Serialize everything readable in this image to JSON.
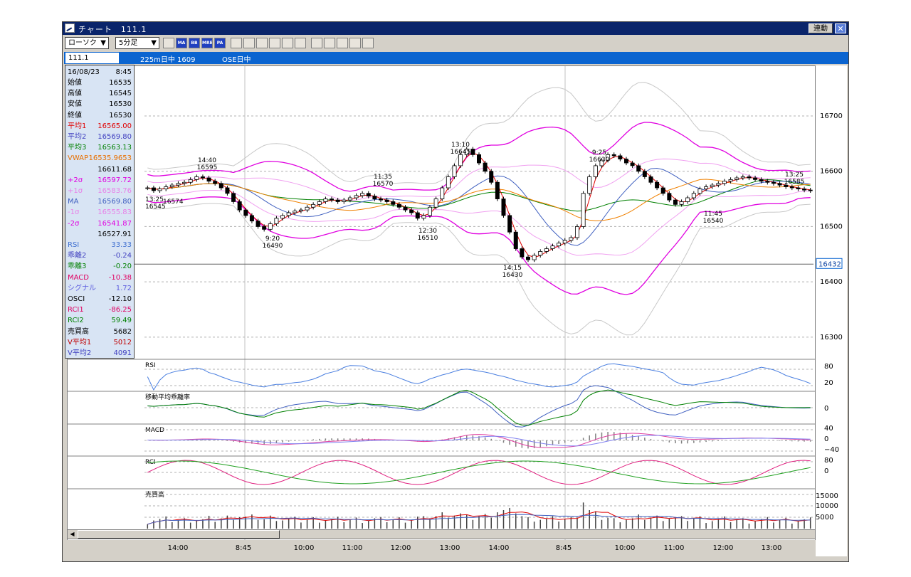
{
  "window": {
    "title": "チャート　111.1",
    "link_label": "連動",
    "close_label": "✕"
  },
  "toolbar": {
    "chart_type": "ローソク",
    "interval": "5分足",
    "buttons": [
      {
        "icon": "chart-icon",
        "label": ""
      },
      {
        "icon": "ma-icon",
        "label": "MA"
      },
      {
        "icon": "bb-icon",
        "label": "BB"
      },
      {
        "icon": "mre-icon",
        "label": "MRE"
      },
      {
        "icon": "pa-icon",
        "label": "PA"
      },
      {
        "icon": "line-icon",
        "label": ""
      },
      {
        "icon": "trend-icon",
        "label": ""
      },
      {
        "icon": "fib-icon",
        "label": ""
      },
      {
        "icon": "zoom-icon",
        "label": ""
      },
      {
        "icon": "grid-icon",
        "label": ""
      },
      {
        "icon": "candle-icon",
        "label": ""
      },
      {
        "icon": "pen-icon",
        "label": ""
      },
      {
        "icon": "cursor-icon",
        "label": ""
      },
      {
        "icon": "eraser-icon",
        "label": ""
      },
      {
        "icon": "search-icon",
        "label": ""
      },
      {
        "icon": "settings-icon",
        "label": ""
      }
    ]
  },
  "infobar": {
    "symbol": "111.1",
    "desc": "225m日中 1609",
    "market": "OSE日中"
  },
  "panel": {
    "date": "16/08/23",
    "time": "8:45",
    "rows": [
      {
        "k": "始値",
        "v": "16535",
        "color": "#000000"
      },
      {
        "k": "高値",
        "v": "16545",
        "color": "#000000"
      },
      {
        "k": "安値",
        "v": "16530",
        "color": "#000000"
      },
      {
        "k": "終値",
        "v": "16530",
        "color": "#000000"
      },
      {
        "k": "平均1",
        "v": "16565.00",
        "color": "#e00000"
      },
      {
        "k": "平均2",
        "v": "16569.80",
        "color": "#4040c0"
      },
      {
        "k": "平均3",
        "v": "16563.13",
        "color": "#008000"
      },
      {
        "k": "VWAP",
        "v": "16535.9653",
        "color": "#e87000"
      },
      {
        "k": "",
        "v": "16611.68",
        "color": "#000000"
      },
      {
        "k": "+2σ",
        "v": "16597.72",
        "color": "#e000e0"
      },
      {
        "k": "+1σ",
        "v": "16583.76",
        "color": "#e880e8"
      },
      {
        "k": "MA",
        "v": "16569.80",
        "color": "#4060c0"
      },
      {
        "k": "-1σ",
        "v": "16555.83",
        "color": "#e880e8"
      },
      {
        "k": "-2σ",
        "v": "16541.87",
        "color": "#e000e0"
      },
      {
        "k": "",
        "v": "16527.91",
        "color": "#000000"
      },
      {
        "k": "RSI",
        "v": "33.33",
        "color": "#4070d0"
      },
      {
        "k": "乖離2",
        "v": "-0.24",
        "color": "#4040c0"
      },
      {
        "k": "乖離3",
        "v": "-0.20",
        "color": "#008000"
      },
      {
        "k": "MACD",
        "v": "-10.38",
        "color": "#e00060"
      },
      {
        "k": "シグナル",
        "v": "1.72",
        "color": "#6060e0"
      },
      {
        "k": "OSCI",
        "v": "-12.10",
        "color": "#000000"
      },
      {
        "k": "RCI1",
        "v": "-86.25",
        "color": "#e00060"
      },
      {
        "k": "RCI2",
        "v": "59.49",
        "color": "#008000"
      },
      {
        "k": "売買高",
        "v": "5682",
        "color": "#000000"
      },
      {
        "k": "V平均1",
        "v": "5012",
        "color": "#c00000"
      },
      {
        "k": "V平均2",
        "v": "4091",
        "color": "#4040c0"
      }
    ]
  },
  "chart_data": {
    "type": "line",
    "title": "",
    "x_ticks": [
      "14:00",
      "8:45",
      "10:00",
      "11:00",
      "12:00",
      "13:00",
      "14:00",
      "8:45",
      "10:00",
      "11:00",
      "12:00",
      "13:00"
    ],
    "price_ticks": [
      "16700",
      "16600",
      "16500",
      "16400",
      "16300"
    ],
    "price_range": [
      16260,
      16790
    ],
    "current_price": "16432",
    "annotations": [
      {
        "time": "14:40",
        "price": "16595"
      },
      {
        "time": "13:25",
        "price": "16545"
      },
      {
        "time": "",
        "price": "16574"
      },
      {
        "time": "9:20",
        "price": "16490"
      },
      {
        "time": "11:35",
        "price": "16570"
      },
      {
        "time": "12:30",
        "price": "16510"
      },
      {
        "time": "13:10",
        "price": "16645"
      },
      {
        "time": "14:15",
        "price": "16430"
      },
      {
        "time": "9:25",
        "price": "16630"
      },
      {
        "time": "11:45",
        "price": "16540"
      },
      {
        "time": "13:25",
        "price": "16585"
      }
    ],
    "close": [
      16570,
      16565,
      16568,
      16572,
      16575,
      16578,
      16580,
      16585,
      16590,
      16588,
      16582,
      16578,
      16570,
      16560,
      16545,
      16530,
      16520,
      16510,
      16500,
      16495,
      16505,
      16515,
      16520,
      16525,
      16528,
      16530,
      16535,
      16540,
      16545,
      16550,
      16548,
      16545,
      16548,
      16552,
      16556,
      16560,
      16555,
      16550,
      16548,
      16545,
      16540,
      16535,
      16530,
      16525,
      16515,
      16520,
      16535,
      16550,
      16570,
      16590,
      16610,
      16630,
      16640,
      16630,
      16615,
      16600,
      16580,
      16550,
      16520,
      16490,
      16460,
      16445,
      16440,
      16448,
      16455,
      16460,
      16465,
      16470,
      16475,
      16480,
      16500,
      16560,
      16590,
      16610,
      16620,
      16630,
      16628,
      16622,
      16615,
      16610,
      16600,
      16590,
      16580,
      16570,
      16560,
      16548,
      16540,
      16545,
      16552,
      16560,
      16568,
      16572,
      16575,
      16578,
      16582,
      16585,
      16588,
      16590,
      16588,
      16585,
      16582,
      16580,
      16578,
      16575,
      16572,
      16570,
      16568,
      16566,
      16565
    ],
    "ind_labels": {
      "rsi": "RSI",
      "dev": "移動平均乖離率",
      "macd": "MACD",
      "rci": "RCI",
      "vol": "売買高"
    },
    "ind_ticks": {
      "rsi": [
        "80",
        "20"
      ],
      "dev": [
        "0"
      ],
      "macd": [
        "40",
        "0",
        "−40"
      ],
      "rci": [
        "80",
        "0"
      ],
      "vol": [
        "15000",
        "10000",
        "5000"
      ]
    }
  },
  "colors": {
    "ma1": "#e00000",
    "ma2": "#4060c0",
    "ma3": "#008000",
    "vwap": "#f08000",
    "bb2": "#e000e0",
    "bb1": "#f0a0f0",
    "bb3": "#c8c8c8",
    "rsi": "#4a7fe0",
    "macd": "#e040a0",
    "signal": "#8080f0",
    "rci1": "#e0207f",
    "rci2": "#20a020"
  }
}
